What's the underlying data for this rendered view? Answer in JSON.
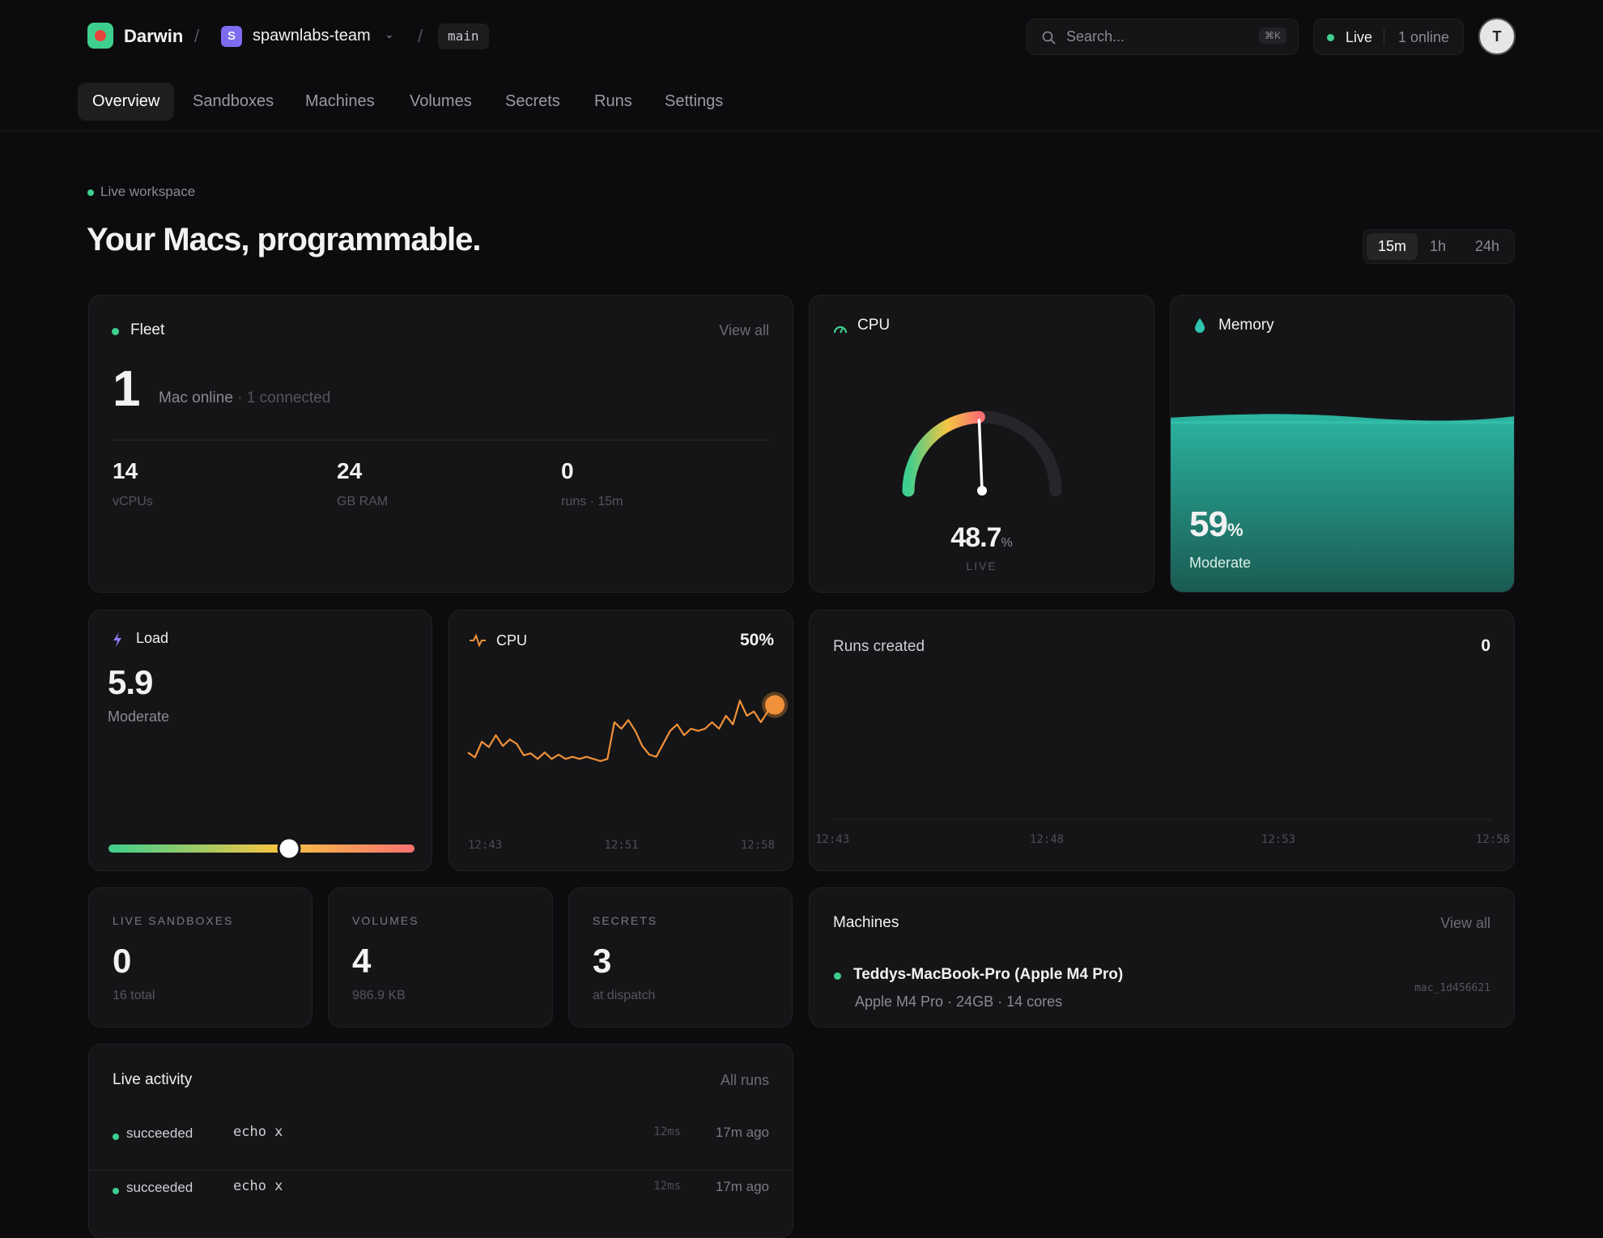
{
  "nav": {
    "brand": "Darwin",
    "team_initial": "S",
    "team": "spawnlabs-team",
    "branch": "main",
    "search": "Search...",
    "shortcut": "⌘K",
    "live": "Live",
    "online": "1 online",
    "avatar": "T",
    "tabs": [
      "Overview",
      "Sandboxes",
      "Machines",
      "Volumes",
      "Secrets",
      "Runs",
      "Settings"
    ]
  },
  "hero": {
    "badge": "Live workspace",
    "title": "Your Macs, programmable.",
    "ranges": [
      "15m",
      "1h",
      "24h"
    ]
  },
  "fleet": {
    "title": "Fleet",
    "link": "View all",
    "count": "1",
    "label": "Mac online",
    "sub": "· 1 connected",
    "stats": [
      {
        "value": "14",
        "label": "vCPUs"
      },
      {
        "value": "24",
        "label": "GB RAM"
      },
      {
        "value": "0",
        "label": "runs · 15m"
      }
    ]
  },
  "cpu_gauge": {
    "title": "CPU",
    "value": 48.7,
    "unit": "%",
    "caption": "LIVE",
    "range": [
      0,
      100
    ]
  },
  "memory": {
    "title": "Memory",
    "value": 59,
    "unit": "%",
    "status": "Moderate",
    "range": [
      0,
      100
    ]
  },
  "load": {
    "title": "Load",
    "value": 5.9,
    "status": "Moderate",
    "range": [
      0,
      10
    ]
  },
  "cpu_chart": {
    "type": "line",
    "title": "CPU",
    "latest": {
      "value": 50,
      "label": "50%"
    },
    "ylim": [
      0,
      60
    ],
    "x_labels": [
      "12:43",
      "12:51",
      "12:58"
    ],
    "color": "#f0913a",
    "values": [
      28,
      25.7,
      33,
      30.5,
      36,
      31,
      34,
      32,
      26.7,
      27.6,
      25,
      28,
      25,
      27,
      25,
      26,
      25,
      26,
      25,
      24,
      25,
      42,
      39,
      43,
      38,
      31,
      27,
      26,
      32,
      38,
      41,
      36,
      39,
      38,
      39,
      42,
      39,
      45,
      41,
      52,
      45,
      47,
      42,
      47,
      50
    ]
  },
  "runs_chart": {
    "title": "Runs created",
    "total": "0",
    "x_labels": [
      "12:43",
      "12:48",
      "12:53",
      "12:58"
    ]
  },
  "counters": [
    {
      "title": "LIVE SANDBOXES",
      "value": "0",
      "sub": "16 total"
    },
    {
      "title": "VOLUMES",
      "value": "4",
      "sub": "986.9 KB"
    },
    {
      "title": "SECRETS",
      "value": "3",
      "sub": "at dispatch"
    }
  ],
  "machines": {
    "title": "Machines",
    "link": "View all",
    "items": [
      {
        "name": "Teddys-MacBook-Pro (Apple M4 Pro)",
        "spec": "Apple M4 Pro · 24GB · 14 cores",
        "id": "mac_1d456621"
      }
    ]
  },
  "activity": {
    "title": "Live activity",
    "link": "All runs",
    "rows": [
      {
        "status": "succeeded",
        "command": "echo x",
        "duration": "12ms",
        "age": "17m ago"
      },
      {
        "status": "succeeded",
        "command": "echo x",
        "duration": "12ms",
        "age": "17m ago"
      }
    ]
  }
}
